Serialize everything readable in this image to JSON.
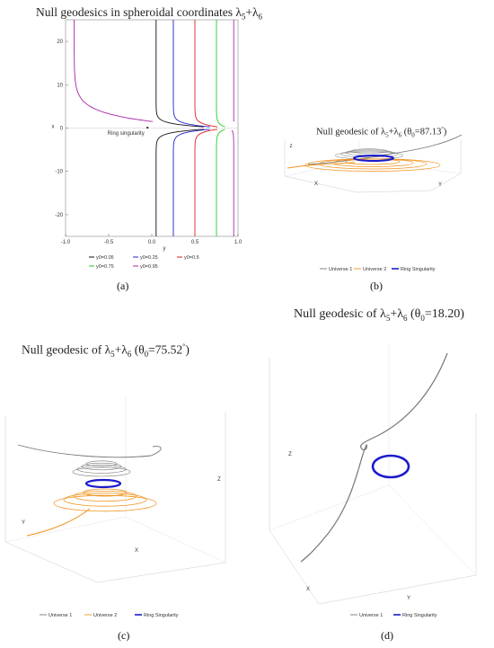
{
  "panels": [
    {
      "id": "a",
      "label": "(a)",
      "title": "Null geodesics in spheroidal coordinates λ5+λ6",
      "annotation": "Ring singularity",
      "chart_data": {
        "type": "line",
        "title": "Null geodesics in spheroidal coordinates λ5+λ6",
        "xlabel": "y",
        "ylabel": "x",
        "xlim": [
          -1.0,
          1.0
        ],
        "ylim": [
          -25,
          25
        ],
        "xticks": [
          "-1.0",
          "-0.5",
          "0.0",
          "0.5",
          "1.0"
        ],
        "yticks": [
          "-20",
          "-10",
          "0",
          "10",
          "20"
        ],
        "legend_position": "bottom",
        "series": [
          {
            "name": "y0=0.05",
            "color": "#111111",
            "y0": 0.05
          },
          {
            "name": "y0=0.25",
            "color": "#2222cc",
            "y0": 0.25
          },
          {
            "name": "y0=0.5",
            "color": "#dd2222",
            "y0": 0.5
          },
          {
            "name": "y0=0.75",
            "color": "#22cc22",
            "y0": 0.75
          },
          {
            "name": "y0=0.95",
            "color": "#aa22aa",
            "y0": 0.95
          }
        ]
      }
    },
    {
      "id": "b",
      "label": "(b)",
      "title": "Null geodesic of λ5+λ6 (θ0=87.13°)",
      "legend": [
        {
          "name": "Universe 1",
          "color": "#777777"
        },
        {
          "name": "Universe 2",
          "color": "#f0931e"
        },
        {
          "name": "Ring Singularity",
          "color": "#1a1acc"
        }
      ],
      "axes": [
        "X",
        "Y",
        "Z"
      ]
    },
    {
      "id": "c",
      "label": "(c)",
      "title": "Null geodesic of λ5+λ6 (θ0=75.52°)",
      "legend": [
        {
          "name": "Universe 1",
          "color": "#777777"
        },
        {
          "name": "Universe 2",
          "color": "#f0931e"
        },
        {
          "name": "Ring Singularity",
          "color": "#1a1acc"
        }
      ],
      "axes": [
        "X",
        "Y",
        "Z"
      ]
    },
    {
      "id": "d",
      "label": "(d)",
      "title": "Null geodesic of λ5+λ6 (θ0=18.20)",
      "legend": [
        {
          "name": "Universe 1",
          "color": "#777777"
        },
        {
          "name": "Ring Singularity",
          "color": "#1a1acc"
        }
      ],
      "axes": [
        "X",
        "Y",
        "Z"
      ]
    }
  ]
}
